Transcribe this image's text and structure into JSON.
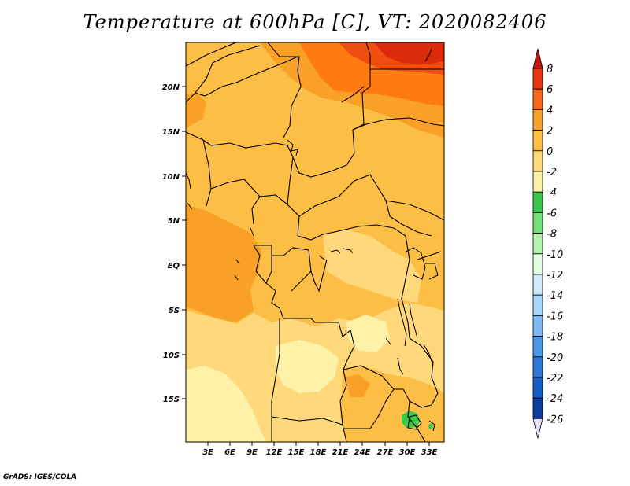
{
  "title": "Temperature at 600hPa [C], VT: 2020082406",
  "footer": "GrADS: IGES/COLA",
  "map": {
    "region": "Central / Sub-Saharan Africa",
    "lat_labels": [
      "20N",
      "15N",
      "10N",
      "5N",
      "EQ",
      "5S",
      "10S",
      "15S"
    ],
    "lon_labels": [
      "3E",
      "6E",
      "9E",
      "12E",
      "15E",
      "18E",
      "21E",
      "24E",
      "27E",
      "30E",
      "33E"
    ],
    "colors": {
      "c4to6": "#ff7a10",
      "c6to8": "#f04e10",
      "c8plus": "#dc2a0c",
      "c2to4": "#f9a127",
      "c0to2": "#fdbe45",
      "cm2to0": "#fed87b",
      "cm4tom2": "#fef2a9",
      "cm6tom4": "#3bc74a",
      "border": "#000000"
    }
  },
  "colorbar": {
    "labels": [
      "8",
      "6",
      "4",
      "2",
      "0",
      "-2",
      "-4",
      "-6",
      "-8",
      "-10",
      "-12",
      "-14",
      "-16",
      "-18",
      "-20",
      "-22",
      "-24",
      "-26"
    ],
    "colors": [
      "#e8340e",
      "#f8661a",
      "#f9a127",
      "#fdbe45",
      "#fed87b",
      "#fef2a9",
      "#3bc74a",
      "#74e07a",
      "#b4f3ae",
      "#e3fde0",
      "#cde9fb",
      "#a8d4f8",
      "#7eb9f3",
      "#4b97e7",
      "#2b78d8",
      "#155ec8",
      "#0a3c9e"
    ],
    "top_triangle_color": "#c8150b",
    "bottom_triangle_color": "#e4e0f8"
  }
}
